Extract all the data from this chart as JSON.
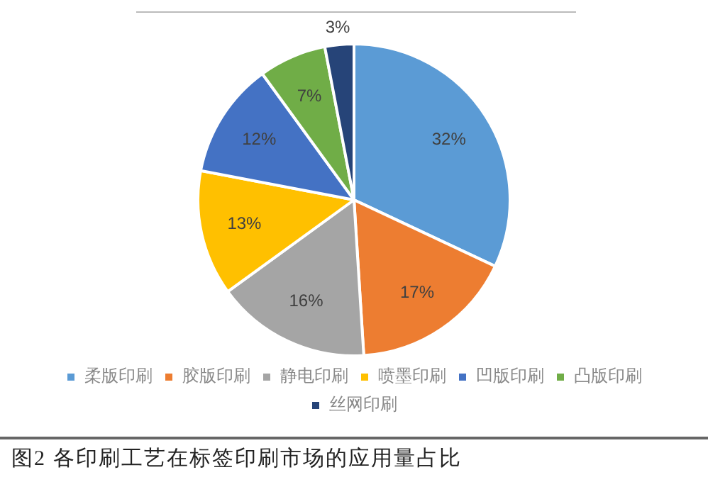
{
  "chart_data": {
    "type": "pie",
    "title": "图2 各印刷工艺在标签印刷市场的应用量占比",
    "categories": [
      "柔版印刷",
      "胶版印刷",
      "静电印刷",
      "喷墨印刷",
      "凹版印刷",
      "凸版印刷",
      "丝网印刷"
    ],
    "values": [
      32,
      17,
      16,
      13,
      12,
      7,
      3
    ],
    "value_labels": [
      "32%",
      "17%",
      "16%",
      "13%",
      "12%",
      "7%",
      "3%"
    ],
    "colors": [
      "#5b9bd5",
      "#ed7d31",
      "#a5a5a5",
      "#ffc000",
      "#4472c4",
      "#70ad47",
      "#264478"
    ],
    "legend": "bottom"
  }
}
